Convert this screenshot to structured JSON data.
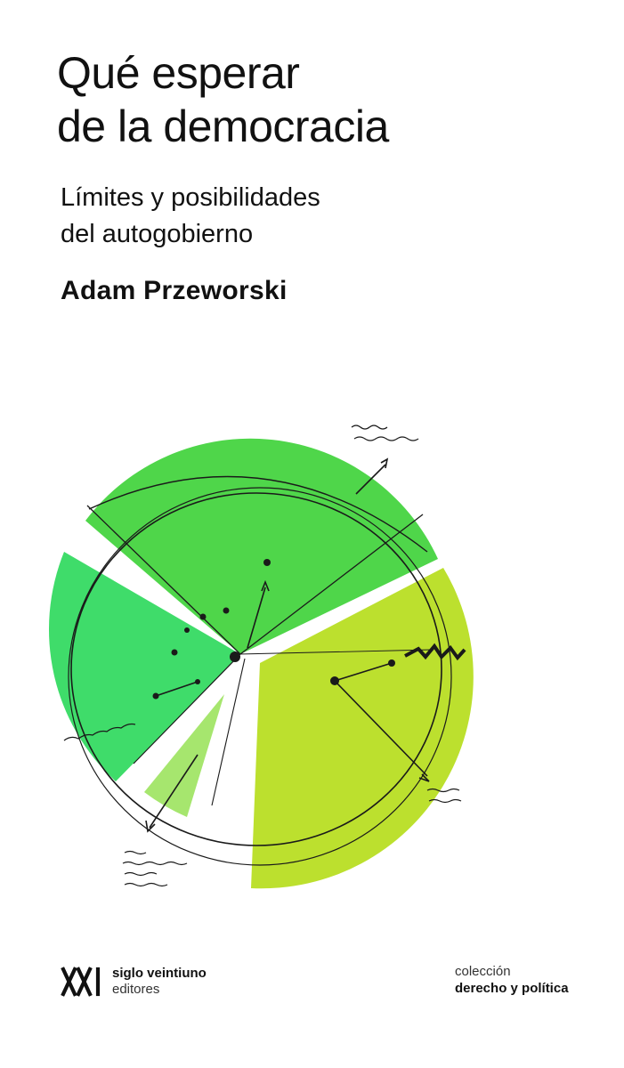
{
  "cover": {
    "title_lines": [
      "Qué esperar",
      "de la democracia"
    ],
    "subtitle_lines": [
      "Límites y posibilidades",
      "del autogobierno"
    ],
    "author": "Adam Przeworski"
  },
  "publisher": {
    "logo_text": "XXI",
    "name": "siglo veintiuno",
    "sub": "editores"
  },
  "collection": {
    "label": "colección",
    "name": "derecho y política"
  },
  "colors": {
    "background": "#ffffff",
    "text": "#111111",
    "green_bright": "#4fd64a",
    "green_emerald": "#3fdc6a",
    "green_lime": "#bce02e",
    "green_pale": "#a6e66e",
    "ink": "#1a1a1a"
  },
  "artwork": {
    "description_icon": "hand-drawn-pie-chart-illustration"
  }
}
